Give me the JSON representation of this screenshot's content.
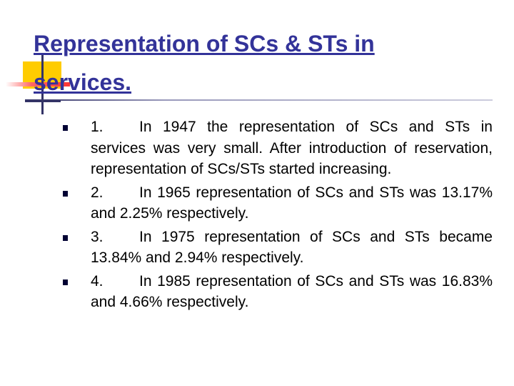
{
  "title": "Representation of SCs & STs in services.",
  "bullets": [
    {
      "number": "1.",
      "text": "In 1947 the representation of SCs and STs in services was very small. After introduction of reservation, representation of SCs/STs started increasing."
    },
    {
      "number": "2.",
      "text": "In 1965 representation of SCs and STs was 13.17% and 2.25% respectively."
    },
    {
      "number": "3.",
      "text": "In 1975 representation of SCs and STs became 13.84% and 2.94% respectively."
    },
    {
      "number": "4.",
      "text": "In 1985 representation of SCs and STs was 16.83% and 4.66% respectively."
    }
  ]
}
